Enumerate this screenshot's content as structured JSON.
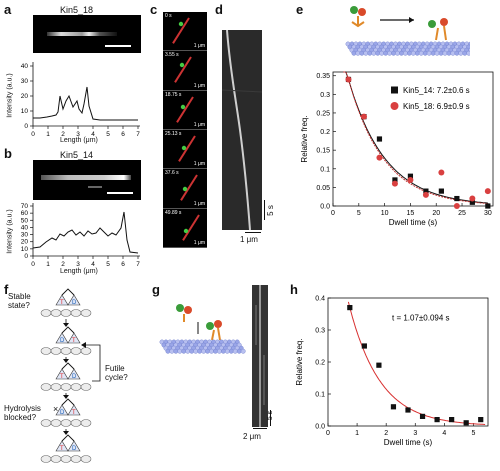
{
  "panel_letters": {
    "a": "a",
    "b": "b",
    "c": "c",
    "d": "d",
    "e": "e",
    "f": "f",
    "g": "g",
    "h": "h"
  },
  "a": {
    "image_title": "Kin5_18",
    "ylabel": "Intensity (a.u.)",
    "xlabel": "Length (μm)",
    "yticks": [
      "0",
      "10",
      "20",
      "30",
      "40"
    ],
    "xticks": [
      "0",
      "1",
      "2",
      "3",
      "4",
      "5",
      "6",
      "7"
    ]
  },
  "b": {
    "image_title": "Kin5_14",
    "ylabel": "Intensity (a.u.)",
    "xlabel": "Length (μm)",
    "yticks": [
      "0",
      "10",
      "20",
      "30",
      "40",
      "50",
      "60",
      "70"
    ],
    "xticks": [
      "0",
      "1",
      "2",
      "3",
      "4",
      "5",
      "6",
      "7"
    ]
  },
  "c": {
    "timestamps": [
      "0 s",
      "3.55 s",
      "18.75 s",
      "25.13 s",
      "37.6 s",
      "49.89 s"
    ],
    "scale_label": "1 μm"
  },
  "d": {
    "time_scale": "5 s",
    "length_scale": "1 μm"
  },
  "f": {
    "labels": {
      "stable": "Stable\nstate?",
      "futile": "Futile\ncycle?",
      "hydrolysis": "Hydrolysis\nblocked?",
      "x_mark": "×"
    },
    "nucleotides": {
      "t": "T",
      "d": "D"
    }
  },
  "g": {
    "time_scale": "5 s",
    "length_scale": "2 μm"
  },
  "chart_data": [
    {
      "panel": "e",
      "type": "scatter",
      "xlabel": "Dwell time (s)",
      "ylabel": "Relative freq.",
      "xlim": [
        0,
        31
      ],
      "ylim": [
        0,
        0.36
      ],
      "xticks": [
        0,
        5,
        10,
        15,
        20,
        25,
        30
      ],
      "yticks": [
        0.0,
        0.05,
        0.1,
        0.15,
        0.2,
        0.25,
        0.3,
        0.35
      ],
      "legend_position": "top-right",
      "series": [
        {
          "name": "Kin5_14: 7.2±0.6 s",
          "marker": "square",
          "color": "#111111",
          "x": [
            3,
            6,
            9,
            12,
            15,
            18,
            21,
            24,
            27,
            30
          ],
          "y": [
            0.34,
            0.24,
            0.18,
            0.07,
            0.08,
            0.04,
            0.04,
            0.02,
            0.01,
            0.0
          ],
          "fit_tau": 7.2
        },
        {
          "name": "Kin5_18: 6.9±0.9 s",
          "marker": "circle",
          "color": "#d94040",
          "x": [
            3,
            6,
            9,
            12,
            15,
            18,
            21,
            24,
            27,
            30
          ],
          "y": [
            0.34,
            0.24,
            0.13,
            0.06,
            0.07,
            0.03,
            0.09,
            0.0,
            0.02,
            0.04
          ],
          "fit_tau": 6.9
        }
      ]
    },
    {
      "panel": "h",
      "type": "scatter",
      "xlabel": "Dwell time (s)",
      "ylabel": "Relative freq.",
      "xlim": [
        0,
        5.5
      ],
      "ylim": [
        0,
        0.4
      ],
      "xticks": [
        0,
        1,
        2,
        3,
        4,
        5
      ],
      "yticks": [
        0.0,
        0.1,
        0.2,
        0.3,
        0.4
      ],
      "annotation": "t = 1.07±0.094 s",
      "series": [
        {
          "name": "",
          "marker": "square",
          "color": "#111111",
          "x": [
            0.75,
            1.25,
            1.75,
            2.25,
            2.75,
            3.25,
            3.75,
            4.25,
            4.75,
            5.25
          ],
          "y": [
            0.37,
            0.25,
            0.19,
            0.06,
            0.05,
            0.03,
            0.02,
            0.02,
            0.01,
            0.02
          ],
          "fit_tau": 1.07,
          "fit_color": "#d83030"
        }
      ]
    }
  ]
}
